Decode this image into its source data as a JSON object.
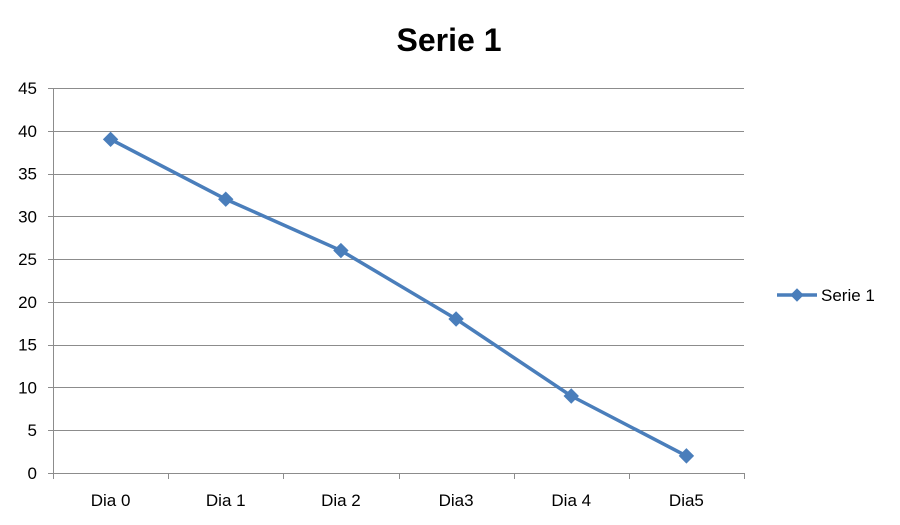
{
  "chart_data": {
    "type": "line",
    "title": "Serie 1",
    "xlabel": "",
    "ylabel": "",
    "categories": [
      "Dia 0",
      "Dia 1",
      "Dia 2",
      "Dia3",
      "Dia 4",
      "Dia5"
    ],
    "series": [
      {
        "name": "Serie 1",
        "values": [
          39,
          32,
          26,
          18,
          9,
          2
        ],
        "color": "#4a7ebb",
        "marker": "diamond"
      }
    ],
    "ylim": [
      0,
      45
    ],
    "yticks": [
      0,
      5,
      10,
      15,
      20,
      25,
      30,
      35,
      40,
      45
    ],
    "grid": true,
    "legend": "right"
  }
}
